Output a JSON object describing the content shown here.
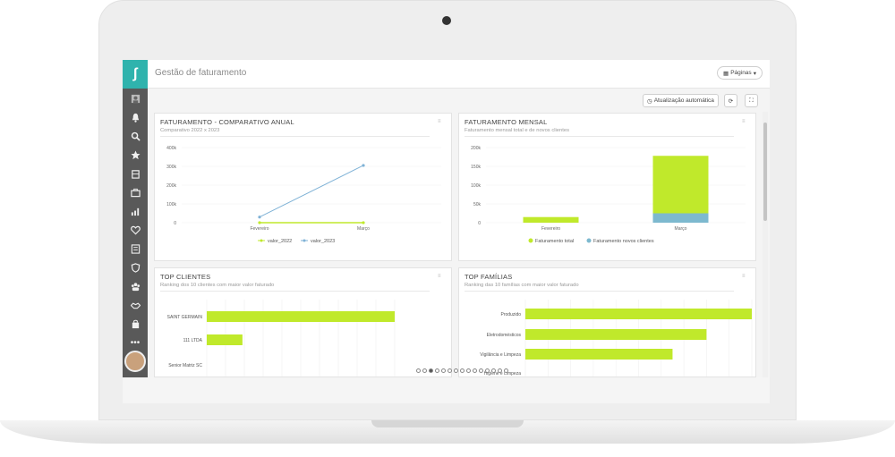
{
  "app": {
    "page_title": "Gestão de faturamento",
    "pages_button": "Páginas",
    "auto_update_button": "Atualização automática"
  },
  "sidebar": {
    "icons": [
      "user-icon",
      "bell-icon",
      "search-icon",
      "star-icon",
      "building-icon",
      "briefcase-icon",
      "chart-icon",
      "heart-icon",
      "list-icon",
      "shield-icon",
      "group-icon",
      "handshake-icon",
      "bag-icon",
      "more-icon"
    ]
  },
  "colors": {
    "accent": "#2fb3ad",
    "green": "#c0e92b",
    "blue": "#7db9cf",
    "line_blue": "#7fb2d6"
  },
  "cards": {
    "annual": {
      "title": "FATURAMENTO - COMPARATIVO ANUAL",
      "subtitle": "Comparativo 2022 x 2023",
      "menu": "≡"
    },
    "monthly": {
      "title": "FATURAMENTO MENSAL",
      "subtitle": "Faturamento mensal total e de novos clientes",
      "menu": "≡"
    },
    "clients": {
      "title": "TOP CLIENTES",
      "subtitle": "Ranking dos 10 clientes com maior valor faturado",
      "menu": "≡"
    },
    "families": {
      "title": "TOP FAMÍLIAS",
      "subtitle": "Ranking das 10 famílias com maior valor faturado",
      "menu": "≡"
    }
  },
  "chart_data": [
    {
      "type": "line",
      "categories": [
        "Fevereiro",
        "Março"
      ],
      "yticks": [
        "0",
        "100k",
        "200k",
        "300k",
        "400k"
      ],
      "ylim": [
        0,
        400000
      ],
      "series": [
        {
          "name": "valor_2022",
          "values": [
            0,
            0
          ],
          "color": "#c0e92b"
        },
        {
          "name": "valor_2023",
          "values": [
            30000,
            305000
          ],
          "color": "#7fb2d6"
        }
      ],
      "legend_position": "bottom"
    },
    {
      "type": "bar",
      "categories": [
        "Fevereiro",
        "Março"
      ],
      "yticks": [
        "0",
        "50k",
        "100k",
        "150k",
        "200k"
      ],
      "ylim": [
        0,
        200000
      ],
      "series": [
        {
          "name": "Faturamento total",
          "values": [
            15000,
            178000
          ],
          "color": "#c0e92b"
        },
        {
          "name": "Faturamento novos clientes",
          "values": [
            0,
            25000
          ],
          "color": "#7db9cf"
        }
      ],
      "legend_position": "bottom"
    },
    {
      "type": "bar",
      "orientation": "horizontal",
      "categories": [
        "SAINT GERMAIN",
        "111 LTDA",
        "Senior Matriz SC"
      ],
      "values": [
        100,
        19,
        0
      ],
      "series": [
        {
          "name": "",
          "values": [
            100,
            19,
            0
          ],
          "color": "#c0e92b"
        }
      ]
    },
    {
      "type": "bar",
      "orientation": "horizontal",
      "categories": [
        "Produzido",
        "Eletrodomésticos",
        "Vigilância e Limpeza",
        "Higiene e Limpeza"
      ],
      "values": [
        100,
        80,
        65,
        0
      ],
      "series": [
        {
          "name": "",
          "values": [
            100,
            80,
            65,
            0
          ],
          "color": "#c0e92b"
        }
      ]
    }
  ],
  "pagination": {
    "count": 15,
    "active_index": 2
  }
}
